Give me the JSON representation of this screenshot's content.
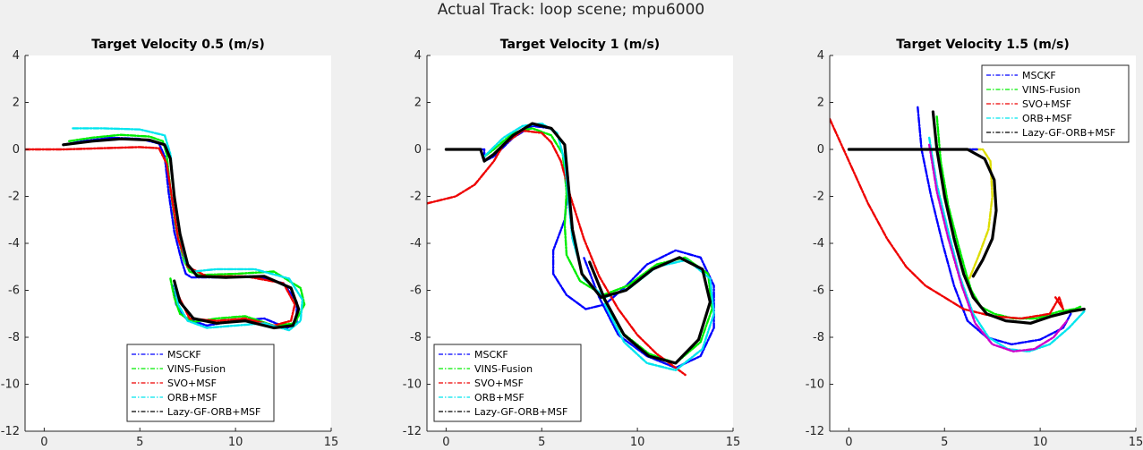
{
  "figure": {
    "title": "Actual Track: loop scene; mpu6000"
  },
  "chart_data": [
    {
      "type": "line",
      "title": "Target Velocity 0.5 (m/s)",
      "xlim": [
        -1,
        15
      ],
      "ylim": [
        -12,
        4
      ],
      "xticks": [
        0,
        5,
        10,
        15
      ],
      "yticks": [
        4,
        2,
        0,
        -2,
        -4,
        -6,
        -8,
        -10,
        -12
      ],
      "legend_position": "bottom-center",
      "series": [
        {
          "name": "MSCKF",
          "color": "#0000ff",
          "x": [
            1,
            2,
            3.5,
            5,
            6,
            6.3,
            6.5,
            6.8,
            7.2,
            7.4,
            7.7,
            9,
            11,
            12.5,
            13.2,
            13.2,
            12.7,
            11.5,
            10,
            8.5,
            7.4,
            6.9,
            6.7
          ],
          "y": [
            0.2,
            0.35,
            0.5,
            0.45,
            0.25,
            -0.3,
            -1.8,
            -3.5,
            -4.8,
            -5.3,
            -5.45,
            -5.45,
            -5.4,
            -5.7,
            -6.5,
            -7.4,
            -7.6,
            -7.2,
            -7.3,
            -7.5,
            -7.2,
            -6.6,
            -5.8
          ]
        },
        {
          "name": "VINS-Fusion",
          "color": "#00ee00",
          "x": [
            1.3,
            2.5,
            4,
            5.5,
            6.2,
            6.4,
            6.6,
            6.9,
            7.3,
            7.6,
            8.1,
            10,
            12,
            13.4,
            13.6,
            13.1,
            12,
            10.5,
            9,
            7.8,
            7.1,
            6.8,
            6.6
          ],
          "y": [
            0.35,
            0.5,
            0.62,
            0.55,
            0.35,
            -0.2,
            -1.7,
            -3.4,
            -4.7,
            -5.2,
            -5.35,
            -5.3,
            -5.2,
            -5.9,
            -6.6,
            -7.4,
            -7.5,
            -7.1,
            -7.2,
            -7.35,
            -7,
            -6.3,
            -5.5
          ]
        },
        {
          "name": "SVO+MSF",
          "color": "#ee0000",
          "x": [
            -1,
            1,
            3,
            5,
            6,
            6.4,
            6.7,
            7,
            7.5,
            8.5,
            10.5,
            12.5,
            13.1,
            12.9,
            12,
            10.5,
            9,
            7.6,
            7
          ],
          "y": [
            0,
            0,
            0.05,
            0.1,
            0.05,
            -0.6,
            -2.2,
            -3.8,
            -5,
            -5.4,
            -5.4,
            -5.7,
            -6.6,
            -7.3,
            -7.5,
            -7.2,
            -7.3,
            -7.2,
            -6.2
          ]
        },
        {
          "name": "ORB+MSF",
          "color": "#00e5ee",
          "x": [
            1.5,
            3,
            5,
            6.3,
            6.6,
            6.8,
            7.1,
            7.4,
            7.8,
            9,
            11,
            12.8,
            13.5,
            13.4,
            12.8,
            11.5,
            10,
            8.5,
            7.5,
            7,
            6.8
          ],
          "y": [
            0.9,
            0.9,
            0.85,
            0.6,
            -0.2,
            -2,
            -3.6,
            -4.8,
            -5.2,
            -5.1,
            -5.1,
            -5.5,
            -6.4,
            -7.3,
            -7.7,
            -7.4,
            -7.5,
            -7.6,
            -7.3,
            -6.6,
            -5.7
          ]
        },
        {
          "name": "Lazy-GF-ORB+MSF",
          "color": "#000000",
          "x": [
            1,
            2.5,
            4,
            5.5,
            6.3,
            6.6,
            6.8,
            7.1,
            7.5,
            8,
            9.5,
            11.5,
            12.9,
            13.3,
            13,
            12,
            10.5,
            9,
            7.8,
            7.1,
            6.8
          ],
          "y": [
            0.2,
            0.35,
            0.45,
            0.4,
            0.2,
            -0.4,
            -2,
            -3.6,
            -4.9,
            -5.4,
            -5.45,
            -5.4,
            -5.9,
            -6.8,
            -7.5,
            -7.6,
            -7.3,
            -7.4,
            -7.2,
            -6.5,
            -5.6
          ]
        }
      ]
    },
    {
      "type": "line",
      "title": "Target Velocity 1 (m/s)",
      "xlim": [
        -1,
        15
      ],
      "ylim": [
        -12,
        4
      ],
      "xticks": [
        0,
        5,
        10,
        15
      ],
      "yticks": [
        4,
        2,
        0,
        -2,
        -4,
        -6,
        -8,
        -10,
        -12
      ],
      "legend_position": "bottom-left",
      "series": [
        {
          "name": "MSCKF",
          "color": "#0000ff",
          "x": [
            0,
            1,
            2,
            2,
            2.5,
            3.5,
            4.5,
            5.5,
            6.2,
            6.4,
            6.2,
            5.6,
            5.6,
            6.3,
            7.3,
            8.3,
            9.3,
            10.5,
            12,
            13.3,
            14,
            14,
            13.3,
            12,
            10.5,
            9,
            8,
            7.2
          ],
          "y": [
            0,
            0,
            0,
            -0.5,
            -0.3,
            0.5,
            1,
            0.9,
            0.2,
            -1.5,
            -3,
            -4.3,
            -5.3,
            -6.2,
            -6.8,
            -6.6,
            -5.9,
            -4.9,
            -4.3,
            -4.6,
            -5.8,
            -7.6,
            -8.8,
            -9.3,
            -8.8,
            -7.9,
            -6.3,
            -4.6
          ]
        },
        {
          "name": "VINS-Fusion",
          "color": "#00ee00",
          "x": [
            2,
            2.5,
            3.5,
            4.5,
            5.5,
            6.1,
            6.3,
            6.2,
            6.3,
            7,
            8.2,
            9.5,
            11,
            12.5,
            13.7,
            13.9,
            13.3,
            12,
            10.6,
            9.2,
            8.2
          ],
          "y": [
            -0.3,
            0,
            0.7,
            0.9,
            0.6,
            -0.2,
            -1.8,
            -3.2,
            -4.5,
            -5.6,
            -6.2,
            -5.8,
            -4.9,
            -4.6,
            -5.3,
            -6.8,
            -8.2,
            -9.1,
            -8.7,
            -7.8,
            -6.3
          ]
        },
        {
          "name": "SVO+MSF",
          "color": "#ee0000",
          "x": [
            -1,
            0.5,
            1.5,
            2,
            2.5,
            3,
            4,
            5,
            5.5,
            6,
            6.5,
            7.2,
            8,
            9,
            10,
            11,
            12,
            12.5
          ],
          "y": [
            -2.3,
            -2,
            -1.5,
            -1,
            -0.5,
            0.2,
            0.8,
            0.7,
            0.3,
            -0.5,
            -2,
            -3.8,
            -5.4,
            -6.8,
            -7.9,
            -8.7,
            -9.3,
            -9.6
          ]
        },
        {
          "name": "ORB+MSF",
          "color": "#00e5ee",
          "x": [
            2,
            3,
            4,
            5,
            5.8,
            6.2,
            6.4,
            6.6,
            7.2,
            8.3,
            9.6,
            11,
            12.6,
            13.8,
            14,
            13.4,
            12,
            10.5,
            9.3,
            8.3
          ],
          "y": [
            -0.3,
            0.5,
            1,
            1.1,
            0.7,
            -0.5,
            -2.2,
            -3.8,
            -5.5,
            -6.3,
            -5.9,
            -5,
            -4.7,
            -5.5,
            -7,
            -8.5,
            -9.4,
            -9.1,
            -8.2,
            -6.6
          ]
        },
        {
          "name": "Lazy-GF-ORB+MSF",
          "color": "#000000",
          "x": [
            0,
            1,
            1.8,
            2,
            2.5,
            3.5,
            4.5,
            5.5,
            6.2,
            6.4,
            6.6,
            7.1,
            8.1,
            9.4,
            10.8,
            12.2,
            13.4,
            13.8,
            13.2,
            12,
            10.6,
            9.3,
            8.3,
            7.5
          ],
          "y": [
            0,
            0,
            0,
            -0.5,
            -0.2,
            0.6,
            1.1,
            0.9,
            0.2,
            -1.6,
            -3.4,
            -5.3,
            -6.3,
            -6,
            -5.1,
            -4.6,
            -5.1,
            -6.5,
            -8.1,
            -9.1,
            -8.8,
            -7.9,
            -6.4,
            -4.8
          ]
        }
      ]
    },
    {
      "type": "line",
      "title": "Target Velocity 1.5 (m/s)",
      "xlim": [
        -1,
        15
      ],
      "ylim": [
        -12,
        4
      ],
      "xticks": [
        0,
        5,
        10,
        15
      ],
      "yticks": [
        4,
        2,
        0,
        -2,
        -4,
        -6,
        -8,
        -10,
        -12
      ],
      "legend_position": "top-right",
      "series": [
        {
          "name": "MSCKF",
          "color": "#0000ff",
          "x": [
            3.6,
            3.8,
            4.3,
            4.9,
            5.5,
            6.2,
            7.2,
            8.5,
            10,
            11.2,
            11.6
          ],
          "y": [
            1.8,
            0,
            -2,
            -4,
            -5.8,
            -7.3,
            -8,
            -8.3,
            -8.1,
            -7.6,
            -7
          ]
        },
        {
          "name": "VINS-Fusion",
          "color": "#00ee00",
          "x": [
            4.6,
            4.8,
            5.2,
            5.7,
            6.1,
            6.4,
            6.9,
            7.6,
            8.6,
            9.8,
            11,
            11.8,
            12.1
          ],
          "y": [
            1.4,
            -0.5,
            -2.4,
            -4,
            -5.2,
            -6,
            -6.7,
            -7,
            -7.2,
            -7.2,
            -6.9,
            -6.8,
            -6.7
          ]
        },
        {
          "name": "SVO+MSF",
          "color": "#ee0000",
          "x": [
            -1,
            0,
            1,
            2,
            3,
            4,
            5,
            6,
            7.5,
            9,
            10.5,
            11,
            11.2,
            10.8
          ],
          "y": [
            1.3,
            -0.5,
            -2.3,
            -3.8,
            -5,
            -5.8,
            -6.3,
            -6.8,
            -7.1,
            -7.2,
            -7,
            -6.3,
            -6.8,
            -6.3
          ]
        },
        {
          "name": "ORB+MSF",
          "color": "#00e5ee",
          "x": [
            4.2,
            4.6,
            5.2,
            5.8,
            6.5,
            7.3,
            8.3,
            9.4,
            10.5,
            11.5,
            12.3
          ],
          "y": [
            0.5,
            -1.5,
            -3.5,
            -5.4,
            -7,
            -8,
            -8.5,
            -8.6,
            -8.3,
            -7.6,
            -6.9
          ]
        },
        {
          "name": "Lazy-GF-ORB+MSF",
          "color": "#000000",
          "x": [
            4.4,
            4.6,
            5,
            5.5,
            6,
            6.5,
            7.2,
            8.2,
            9.5,
            10.6,
            11.6,
            12.3
          ],
          "y": [
            1.6,
            0,
            -2,
            -3.8,
            -5.3,
            -6.3,
            -7,
            -7.3,
            -7.4,
            -7.1,
            -6.9,
            -6.8
          ]
        },
        {
          "name": "",
          "color": "#cc00cc",
          "x": [
            4.2,
            4.6,
            5.2,
            5.9,
            6.6,
            7.5,
            8.6,
            9.7,
            10.7,
            11.4
          ],
          "y": [
            0.2,
            -1.8,
            -3.8,
            -5.8,
            -7.4,
            -8.3,
            -8.6,
            -8.5,
            -8,
            -7.3
          ]
        },
        {
          "name": "",
          "color": "#dddd00",
          "x": [
            5,
            7,
            7.4,
            7.5,
            7.3,
            6.8,
            6.3
          ],
          "y": [
            0,
            0,
            -0.5,
            -2,
            -3.4,
            -4.5,
            -5.5
          ]
        },
        {
          "name": "",
          "color": "#0000ff",
          "x": [
            0,
            2,
            4,
            6,
            6.5,
            6.7
          ],
          "y": [
            0,
            0,
            0,
            0,
            0,
            0
          ]
        },
        {
          "name": "",
          "color": "#000000",
          "x": [
            0,
            2,
            4,
            6.2,
            7.1,
            7.6,
            7.7,
            7.5,
            7,
            6.5
          ],
          "y": [
            0,
            0,
            0,
            0,
            -0.4,
            -1.3,
            -2.6,
            -3.8,
            -4.7,
            -5.4
          ]
        }
      ]
    }
  ]
}
